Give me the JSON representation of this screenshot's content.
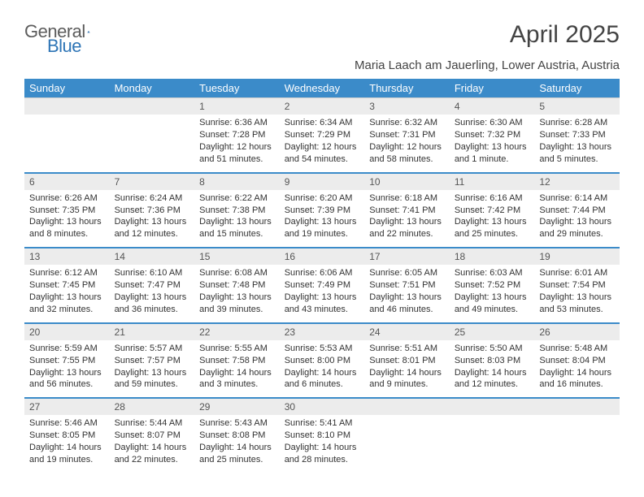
{
  "brand": {
    "word1": "General",
    "word2": "Blue"
  },
  "title": "April 2025",
  "subtitle": "Maria Laach am Jauerling, Lower Austria, Austria",
  "colors": {
    "header_bg": "#3b8bc9",
    "header_text": "#ffffff",
    "daynum_bg": "#ececec",
    "daynum_text": "#555555",
    "body_text": "#333333",
    "week_sep": "#3b8bc9",
    "page_bg": "#ffffff",
    "brand_gray": "#5c5c5c",
    "brand_blue": "#2e75b6"
  },
  "typography": {
    "title_fontsize": 30,
    "subtitle_fontsize": 15,
    "dayheader_fontsize": 13,
    "daynum_fontsize": 12,
    "cell_fontsize": 11,
    "logo_fontsize": 22
  },
  "day_headers": [
    "Sunday",
    "Monday",
    "Tuesday",
    "Wednesday",
    "Thursday",
    "Friday",
    "Saturday"
  ],
  "weeks": [
    [
      {
        "n": "",
        "sr": "",
        "ss": "",
        "dl": ""
      },
      {
        "n": "",
        "sr": "",
        "ss": "",
        "dl": ""
      },
      {
        "n": "1",
        "sr": "Sunrise: 6:36 AM",
        "ss": "Sunset: 7:28 PM",
        "dl": "Daylight: 12 hours and 51 minutes."
      },
      {
        "n": "2",
        "sr": "Sunrise: 6:34 AM",
        "ss": "Sunset: 7:29 PM",
        "dl": "Daylight: 12 hours and 54 minutes."
      },
      {
        "n": "3",
        "sr": "Sunrise: 6:32 AM",
        "ss": "Sunset: 7:31 PM",
        "dl": "Daylight: 12 hours and 58 minutes."
      },
      {
        "n": "4",
        "sr": "Sunrise: 6:30 AM",
        "ss": "Sunset: 7:32 PM",
        "dl": "Daylight: 13 hours and 1 minute."
      },
      {
        "n": "5",
        "sr": "Sunrise: 6:28 AM",
        "ss": "Sunset: 7:33 PM",
        "dl": "Daylight: 13 hours and 5 minutes."
      }
    ],
    [
      {
        "n": "6",
        "sr": "Sunrise: 6:26 AM",
        "ss": "Sunset: 7:35 PM",
        "dl": "Daylight: 13 hours and 8 minutes."
      },
      {
        "n": "7",
        "sr": "Sunrise: 6:24 AM",
        "ss": "Sunset: 7:36 PM",
        "dl": "Daylight: 13 hours and 12 minutes."
      },
      {
        "n": "8",
        "sr": "Sunrise: 6:22 AM",
        "ss": "Sunset: 7:38 PM",
        "dl": "Daylight: 13 hours and 15 minutes."
      },
      {
        "n": "9",
        "sr": "Sunrise: 6:20 AM",
        "ss": "Sunset: 7:39 PM",
        "dl": "Daylight: 13 hours and 19 minutes."
      },
      {
        "n": "10",
        "sr": "Sunrise: 6:18 AM",
        "ss": "Sunset: 7:41 PM",
        "dl": "Daylight: 13 hours and 22 minutes."
      },
      {
        "n": "11",
        "sr": "Sunrise: 6:16 AM",
        "ss": "Sunset: 7:42 PM",
        "dl": "Daylight: 13 hours and 25 minutes."
      },
      {
        "n": "12",
        "sr": "Sunrise: 6:14 AM",
        "ss": "Sunset: 7:44 PM",
        "dl": "Daylight: 13 hours and 29 minutes."
      }
    ],
    [
      {
        "n": "13",
        "sr": "Sunrise: 6:12 AM",
        "ss": "Sunset: 7:45 PM",
        "dl": "Daylight: 13 hours and 32 minutes."
      },
      {
        "n": "14",
        "sr": "Sunrise: 6:10 AM",
        "ss": "Sunset: 7:47 PM",
        "dl": "Daylight: 13 hours and 36 minutes."
      },
      {
        "n": "15",
        "sr": "Sunrise: 6:08 AM",
        "ss": "Sunset: 7:48 PM",
        "dl": "Daylight: 13 hours and 39 minutes."
      },
      {
        "n": "16",
        "sr": "Sunrise: 6:06 AM",
        "ss": "Sunset: 7:49 PM",
        "dl": "Daylight: 13 hours and 43 minutes."
      },
      {
        "n": "17",
        "sr": "Sunrise: 6:05 AM",
        "ss": "Sunset: 7:51 PM",
        "dl": "Daylight: 13 hours and 46 minutes."
      },
      {
        "n": "18",
        "sr": "Sunrise: 6:03 AM",
        "ss": "Sunset: 7:52 PM",
        "dl": "Daylight: 13 hours and 49 minutes."
      },
      {
        "n": "19",
        "sr": "Sunrise: 6:01 AM",
        "ss": "Sunset: 7:54 PM",
        "dl": "Daylight: 13 hours and 53 minutes."
      }
    ],
    [
      {
        "n": "20",
        "sr": "Sunrise: 5:59 AM",
        "ss": "Sunset: 7:55 PM",
        "dl": "Daylight: 13 hours and 56 minutes."
      },
      {
        "n": "21",
        "sr": "Sunrise: 5:57 AM",
        "ss": "Sunset: 7:57 PM",
        "dl": "Daylight: 13 hours and 59 minutes."
      },
      {
        "n": "22",
        "sr": "Sunrise: 5:55 AM",
        "ss": "Sunset: 7:58 PM",
        "dl": "Daylight: 14 hours and 3 minutes."
      },
      {
        "n": "23",
        "sr": "Sunrise: 5:53 AM",
        "ss": "Sunset: 8:00 PM",
        "dl": "Daylight: 14 hours and 6 minutes."
      },
      {
        "n": "24",
        "sr": "Sunrise: 5:51 AM",
        "ss": "Sunset: 8:01 PM",
        "dl": "Daylight: 14 hours and 9 minutes."
      },
      {
        "n": "25",
        "sr": "Sunrise: 5:50 AM",
        "ss": "Sunset: 8:03 PM",
        "dl": "Daylight: 14 hours and 12 minutes."
      },
      {
        "n": "26",
        "sr": "Sunrise: 5:48 AM",
        "ss": "Sunset: 8:04 PM",
        "dl": "Daylight: 14 hours and 16 minutes."
      }
    ],
    [
      {
        "n": "27",
        "sr": "Sunrise: 5:46 AM",
        "ss": "Sunset: 8:05 PM",
        "dl": "Daylight: 14 hours and 19 minutes."
      },
      {
        "n": "28",
        "sr": "Sunrise: 5:44 AM",
        "ss": "Sunset: 8:07 PM",
        "dl": "Daylight: 14 hours and 22 minutes."
      },
      {
        "n": "29",
        "sr": "Sunrise: 5:43 AM",
        "ss": "Sunset: 8:08 PM",
        "dl": "Daylight: 14 hours and 25 minutes."
      },
      {
        "n": "30",
        "sr": "Sunrise: 5:41 AM",
        "ss": "Sunset: 8:10 PM",
        "dl": "Daylight: 14 hours and 28 minutes."
      },
      {
        "n": "",
        "sr": "",
        "ss": "",
        "dl": ""
      },
      {
        "n": "",
        "sr": "",
        "ss": "",
        "dl": ""
      },
      {
        "n": "",
        "sr": "",
        "ss": "",
        "dl": ""
      }
    ]
  ]
}
